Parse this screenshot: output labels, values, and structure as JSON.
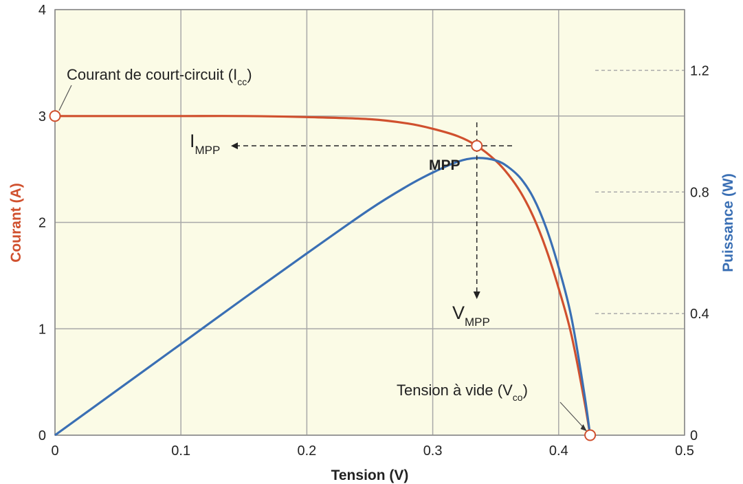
{
  "chart_data": {
    "type": "line",
    "x_label": "Tension (V)",
    "y_label_left": "Courant (A)",
    "y_label_right": "Puissance (W)",
    "xlim": [
      0,
      0.5
    ],
    "ylim_left": [
      0,
      4
    ],
    "ylim_right": [
      0,
      1.4
    ],
    "x_ticks": [
      "0",
      "0.1",
      "0.2",
      "0.3",
      "0.4",
      "0.5"
    ],
    "y_left_ticks": [
      "0",
      "1",
      "2",
      "3",
      "4"
    ],
    "y_right_ticks": [
      "0",
      "0.4",
      "0.8",
      "1.2"
    ],
    "grid": true,
    "colors": {
      "background": "#fbfbe6",
      "grid": "#a8a8a8",
      "current": "#d0502e",
      "power": "#3a6fb4",
      "left_label": "#d0502e",
      "right_label": "#3a6fb4"
    },
    "series": [
      {
        "key": "current",
        "x": [
          0,
          0.05,
          0.1,
          0.15,
          0.2,
          0.25,
          0.28,
          0.3,
          0.32,
          0.335,
          0.35,
          0.36,
          0.37,
          0.38,
          0.39,
          0.4,
          0.41,
          0.42,
          0.425
        ],
        "y": [
          3.0,
          3.0,
          3.0,
          3.0,
          2.99,
          2.97,
          2.93,
          2.88,
          2.81,
          2.72,
          2.58,
          2.45,
          2.28,
          2.05,
          1.75,
          1.38,
          0.95,
          0.35,
          0
        ]
      },
      {
        "key": "power",
        "x": [
          0,
          0.05,
          0.1,
          0.15,
          0.2,
          0.25,
          0.28,
          0.3,
          0.32,
          0.335,
          0.35,
          0.36,
          0.37,
          0.38,
          0.39,
          0.4,
          0.41,
          0.42,
          0.425
        ],
        "y": [
          0,
          0.15,
          0.3,
          0.45,
          0.598,
          0.743,
          0.82,
          0.864,
          0.9,
          0.912,
          0.904,
          0.882,
          0.844,
          0.78,
          0.683,
          0.552,
          0.39,
          0.147,
          0
        ]
      }
    ],
    "annotations": {
      "isc": {
        "text": "Courant de court-circuit (I",
        "sub": "cc",
        "suffix": ")",
        "x": 0,
        "y": 3.0
      },
      "voc": {
        "text": "Tension à vide (V",
        "sub": "co",
        "suffix": ")",
        "x": 0.425,
        "y": 0
      },
      "mpp": {
        "text": "MPP",
        "x": 0.335,
        "y": 2.72
      },
      "impp": {
        "text": "I",
        "sub": "MPP"
      },
      "vmpp": {
        "text": "V",
        "sub": "MPP"
      }
    }
  }
}
